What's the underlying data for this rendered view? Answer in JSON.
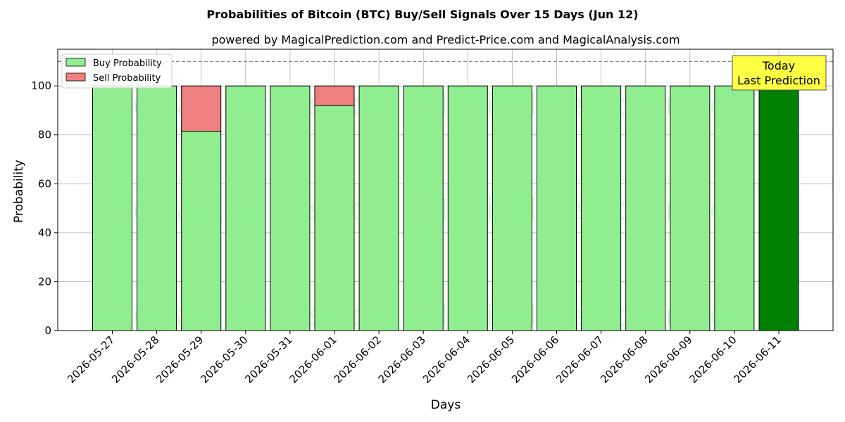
{
  "chart_data": {
    "type": "bar",
    "stacked": true,
    "title": "Probabilities of Bitcoin (BTC) Buy/Sell Signals Over 15 Days (Jun 12)",
    "subtitle": "powered by MagicalPrediction.com and Predict-Price.com and MagicalAnalysis.com",
    "xlabel": "Days",
    "ylabel": "Probability",
    "ylim": [
      0,
      115
    ],
    "yticks": [
      0,
      20,
      40,
      60,
      80,
      100
    ],
    "reference_line": 110,
    "grid": true,
    "legend_position": "top-left",
    "categories": [
      "2026-05-27",
      "2026-05-28",
      "2026-05-29",
      "2026-05-30",
      "2026-05-31",
      "2026-06-01",
      "2026-06-02",
      "2026-06-03",
      "2026-06-04",
      "2026-06-05",
      "2026-06-06",
      "2026-06-07",
      "2026-06-08",
      "2026-06-09",
      "2026-06-10",
      "2026-06-11"
    ],
    "series": [
      {
        "name": "Buy Probability",
        "color": "#90ee90",
        "values": [
          100,
          100,
          81.5,
          100,
          100,
          92,
          100,
          100,
          100,
          100,
          100,
          100,
          100,
          100,
          100,
          100
        ]
      },
      {
        "name": "Sell Probability",
        "color": "#f08080",
        "values": [
          0,
          0,
          18.5,
          0,
          0,
          8,
          0,
          0,
          0,
          0,
          0,
          0,
          0,
          0,
          0,
          0
        ]
      }
    ],
    "highlight": {
      "index": 15,
      "color": "#008000"
    },
    "annotation": {
      "lines": [
        "Today",
        "Last Prediction"
      ],
      "background": "#ffff44"
    },
    "watermarks": [
      "MagicalAnalysis.com",
      "MagicalPrediction.com"
    ]
  }
}
